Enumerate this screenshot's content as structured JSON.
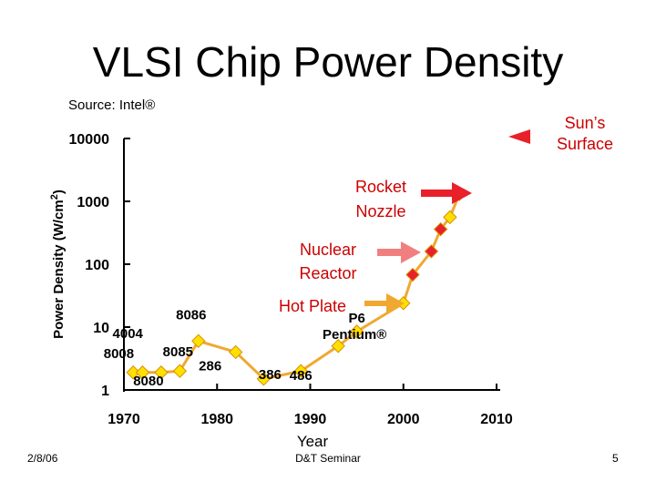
{
  "slide": {
    "title": "VLSI Chip Power Density",
    "source": "Source: Intel®",
    "footer_date": "2/8/06",
    "footer_center": "D&T Seminar",
    "page_number": "5"
  },
  "colors": {
    "line": "#f0a830",
    "marker_yellow": "#ffe000",
    "marker_red": "#e8202a",
    "annotation_red": "#cc0000",
    "arrow_red": "#e8202a",
    "arrow_pink": "#f08080",
    "arrow_orange": "#f0a830"
  },
  "annotations": [
    {
      "key": "sun",
      "line1": "Sun’s",
      "line2": "Surface",
      "arrow_color": "arrow_red"
    },
    {
      "key": "rocket",
      "line1": "Rocket",
      "line2": "Nozzle",
      "arrow_color": "arrow_red"
    },
    {
      "key": "nuclear",
      "line1": "Nuclear",
      "line2": "Reactor",
      "arrow_color": "arrow_pink"
    },
    {
      "key": "hotplate",
      "line1": "Hot Plate",
      "line2": "",
      "arrow_color": "arrow_orange"
    }
  ],
  "chart_data": {
    "type": "line",
    "title": "VLSI Chip Power Density",
    "xlabel": "Year",
    "ylabel": "Power Density (W/cm²)",
    "ylabel_main": "Power Density (W/cm",
    "ylabel_sup": "2",
    "ylabel_close": ")",
    "x_scale": "linear",
    "y_scale": "log",
    "xlim": [
      1970,
      2010
    ],
    "ylim": [
      1,
      10000
    ],
    "x_ticks": [
      "1970",
      "1980",
      "1990",
      "2000",
      "2010"
    ],
    "y_ticks": [
      "1",
      "10",
      "100",
      "1000",
      "10000"
    ],
    "points": [
      {
        "label": "4004",
        "x": 1971,
        "y": 1.9,
        "color": "yellow"
      },
      {
        "label": "8008",
        "x": 1972,
        "y": 1.9,
        "color": "yellow"
      },
      {
        "label": "8080",
        "x": 1974,
        "y": 1.9,
        "color": "yellow"
      },
      {
        "label": "8085",
        "x": 1976,
        "y": 2.0,
        "color": "yellow"
      },
      {
        "label": "8086",
        "x": 1978,
        "y": 6.0,
        "color": "yellow"
      },
      {
        "label": "286",
        "x": 1982,
        "y": 4.0,
        "color": "yellow"
      },
      {
        "label": "386",
        "x": 1985,
        "y": 1.5,
        "color": "yellow"
      },
      {
        "label": "486",
        "x": 1989,
        "y": 2.0,
        "color": "yellow"
      },
      {
        "label": "Pentium®",
        "x": 1993,
        "y": 5.0,
        "color": "yellow"
      },
      {
        "label": "P6",
        "x": 1995,
        "y": 8.5,
        "color": "yellow"
      },
      {
        "label": "",
        "x": 2000,
        "y": 24,
        "color": "yellow"
      },
      {
        "label": "",
        "x": 2001,
        "y": 68,
        "color": "red"
      },
      {
        "label": "",
        "x": 2003,
        "y": 160,
        "color": "red"
      },
      {
        "label": "",
        "x": 2004,
        "y": 360,
        "color": "red"
      },
      {
        "label": "",
        "x": 2005,
        "y": 560,
        "color": "yellow"
      },
      {
        "label": "",
        "x": 2006,
        "y": 1300,
        "color": "red"
      }
    ]
  }
}
